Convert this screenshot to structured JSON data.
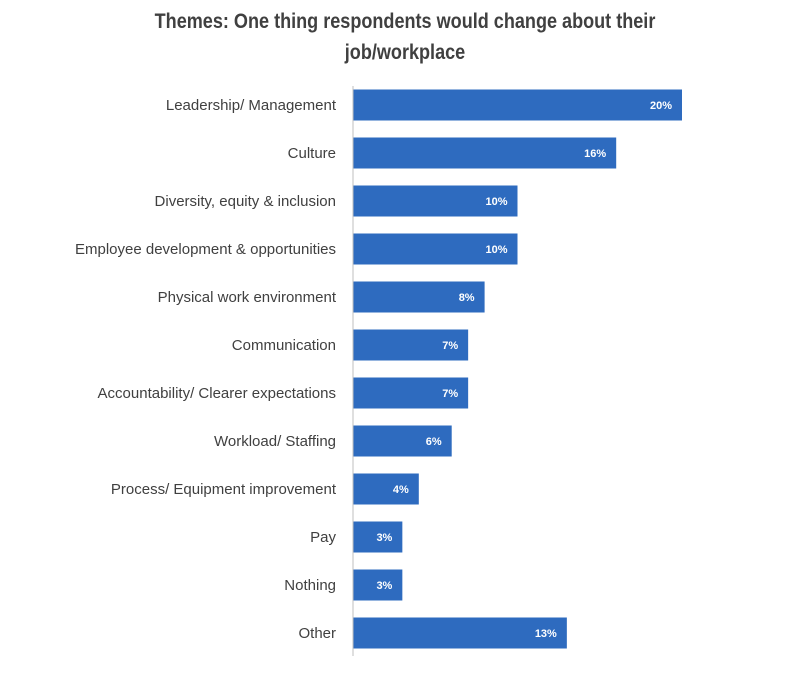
{
  "chart_data": {
    "type": "bar",
    "orientation": "horizontal",
    "title_lines": [
      "Themes:  One thing respondents would change about their",
      "job/workplace"
    ],
    "categories": [
      "Leadership/ Management",
      "Culture",
      "Diversity, equity & inclusion",
      "Employee development & opportunities",
      "Physical work environment",
      "Communication",
      "Accountability/ Clearer expectations",
      "Workload/ Staffing",
      "Process/ Equipment improvement",
      "Pay",
      "Nothing",
      "Other"
    ],
    "values": [
      20,
      16,
      10,
      10,
      8,
      7,
      7,
      6,
      4,
      3,
      3,
      13
    ],
    "data_labels": [
      "20%",
      "16%",
      "10%",
      "10%",
      "8%",
      "7%",
      "7%",
      "6%",
      "4%",
      "3%",
      "3%",
      "13%"
    ],
    "value_unit": "%",
    "xlim": [
      0,
      20
    ],
    "bar_color": "#2E6BBF",
    "label_color": "#ffffff",
    "axis_color": "#bfbfbf",
    "gridlines": false,
    "legend": "none"
  }
}
